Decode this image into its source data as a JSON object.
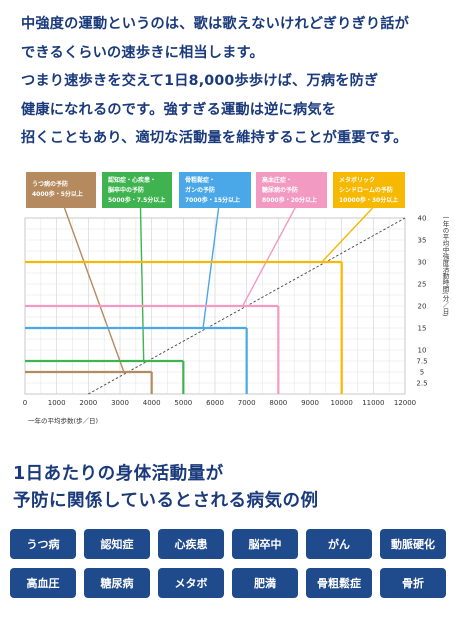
{
  "intro": {
    "lines": [
      "中強度の運動というのは、歌は歌えないけれどぎりぎり話が",
      "できるくらいの速歩きに相当します。",
      "つまり速歩きを交えて1日8,000歩歩けば、万病を防ぎ",
      "健康になれるのです。強すぎる運動は逆に病気を",
      "招くこともあり、適切な活動量を維持することが重要です。"
    ]
  },
  "colors": {
    "text": "#1a3a7c",
    "button_bg": "#1f4a8c",
    "depression": "#b58a5e",
    "dementia": "#3fb34f",
    "osteoporosis": "#4aa8e8",
    "hypertension": "#f29ac1",
    "metabolic": "#f6b800"
  },
  "chart_data": {
    "type": "line",
    "xlabel": "一年の平均歩数(歩／日)",
    "ylabel": "一年の平均中強度活動時間(分／日)",
    "xlim": [
      0,
      12000
    ],
    "ylim": [
      0,
      40
    ],
    "x_ticks": [
      "0",
      "1000",
      "2000",
      "3000",
      "4000",
      "5000",
      "6000",
      "7000",
      "8000",
      "9000",
      "10000",
      "11000",
      "12000"
    ],
    "y_ticks": [
      "2.5",
      "5",
      "7.5",
      "10",
      "15",
      "20",
      "25",
      "30",
      "35",
      "40"
    ],
    "grid": true,
    "reference_line": {
      "style": "dashed",
      "points": [
        [
          2000,
          0
        ],
        [
          12000,
          40
        ]
      ]
    },
    "series": [
      {
        "key": "depression",
        "steps": 4000,
        "minutes": 5,
        "label": [
          "うつ病の予防",
          "4000歩・5分以上"
        ]
      },
      {
        "key": "dementia",
        "steps": 5000,
        "minutes": 7.5,
        "label": [
          "認知症・心疾患・",
          "脳卒中の予防",
          "5000歩・7.5分以上"
        ]
      },
      {
        "key": "osteoporosis",
        "steps": 7000,
        "minutes": 15,
        "label": [
          "骨粗鬆症・",
          "ガンの予防",
          "7000歩・15分以上"
        ]
      },
      {
        "key": "hypertension",
        "steps": 8000,
        "minutes": 20,
        "label": [
          "高血圧症・",
          "糖尿病の予防",
          "8000歩・20分以上"
        ]
      },
      {
        "key": "metabolic",
        "steps": 10000,
        "minutes": 30,
        "label": [
          "メタボリック",
          "シンドロームの予防",
          "10000歩・30分以上"
        ]
      }
    ]
  },
  "section": {
    "title_lines": [
      "1日あたりの身体活動量が",
      "予防に関係しているとされる病気の例"
    ]
  },
  "diseases": [
    "うつ病",
    "認知症",
    "心疾患",
    "脳卒中",
    "がん",
    "動脈硬化",
    "高血圧",
    "糖尿病",
    "メタボ",
    "肥満",
    "骨粗鬆症",
    "骨折"
  ]
}
